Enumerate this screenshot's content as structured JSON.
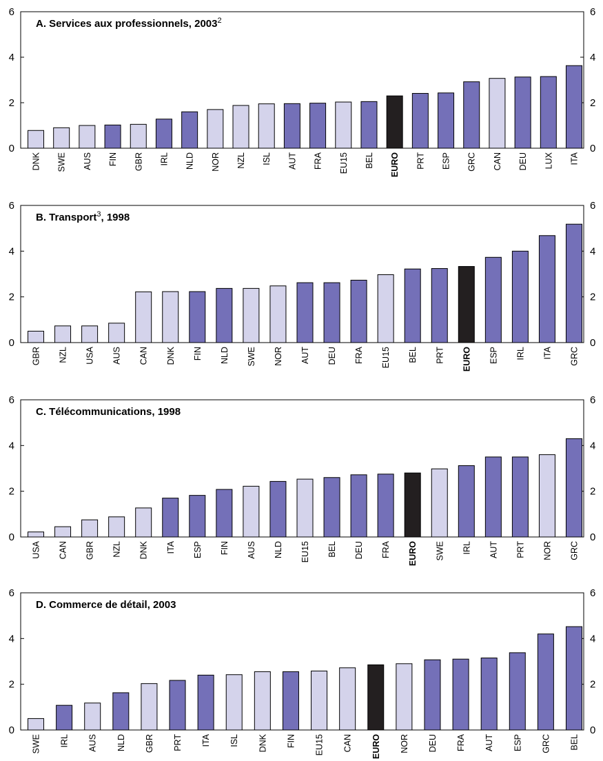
{
  "colors": {
    "dark_blue": "#7470b8",
    "light_lavender": "#d4d3eb",
    "euro_black": "#231f20"
  },
  "chart_data": [
    {
      "type": "bar",
      "title": "A. Services aux professionnels,  2003",
      "title_superscript": "2",
      "ylim": [
        0,
        6
      ],
      "yticks": [
        0,
        2,
        4,
        6
      ],
      "categories": [
        "DNK",
        "SWE",
        "AUS",
        "FIN",
        "GBR",
        "IRL",
        "NLD",
        "NOR",
        "NZL",
        "ISL",
        "AUT",
        "FRA",
        "EU15",
        "BEL",
        "EURO",
        "PRT",
        "ESP",
        "GRC",
        "CAN",
        "DEU",
        "LUX",
        "ITA"
      ],
      "values": [
        0.78,
        0.9,
        1.0,
        1.02,
        1.05,
        1.28,
        1.6,
        1.7,
        1.88,
        1.95,
        1.96,
        1.98,
        2.03,
        2.05,
        2.3,
        2.41,
        2.43,
        2.92,
        3.07,
        3.13,
        3.15,
        3.63
      ],
      "colors": [
        "light_lavender",
        "light_lavender",
        "light_lavender",
        "dark_blue",
        "light_lavender",
        "dark_blue",
        "dark_blue",
        "light_lavender",
        "light_lavender",
        "light_lavender",
        "dark_blue",
        "dark_blue",
        "light_lavender",
        "dark_blue",
        "euro_black",
        "dark_blue",
        "dark_blue",
        "dark_blue",
        "light_lavender",
        "dark_blue",
        "dark_blue",
        "dark_blue"
      ]
    },
    {
      "type": "bar",
      "title": "B. Transport",
      "title_superscript": "3",
      "title_suffix": ", 1998",
      "ylim": [
        0,
        6
      ],
      "yticks": [
        0,
        2,
        4,
        6
      ],
      "categories": [
        "GBR",
        "NZL",
        "USA",
        "AUS",
        "CAN",
        "DNK",
        "FIN",
        "NLD",
        "SWE",
        "NOR",
        "AUT",
        "DEU",
        "FRA",
        "EU15",
        "BEL",
        "PRT",
        "EURO",
        "ESP",
        "IRL",
        "ITA",
        "GRC"
      ],
      "values": [
        0.5,
        0.73,
        0.73,
        0.85,
        2.22,
        2.23,
        2.23,
        2.37,
        2.37,
        2.48,
        2.62,
        2.62,
        2.73,
        2.97,
        3.22,
        3.24,
        3.33,
        3.73,
        4.0,
        4.68,
        5.18
      ],
      "colors": [
        "light_lavender",
        "light_lavender",
        "light_lavender",
        "light_lavender",
        "light_lavender",
        "light_lavender",
        "dark_blue",
        "dark_blue",
        "light_lavender",
        "light_lavender",
        "dark_blue",
        "dark_blue",
        "dark_blue",
        "light_lavender",
        "dark_blue",
        "dark_blue",
        "euro_black",
        "dark_blue",
        "dark_blue",
        "dark_blue",
        "dark_blue"
      ]
    },
    {
      "type": "bar",
      "title": "C. Télécommunications, 1998",
      "ylim": [
        0,
        6
      ],
      "yticks": [
        0,
        2,
        4,
        6
      ],
      "categories": [
        "USA",
        "CAN",
        "GBR",
        "NZL",
        "DNK",
        "ITA",
        "ESP",
        "FIN",
        "AUS",
        "NLD",
        "EU15",
        "BEL",
        "DEU",
        "FRA",
        "EURO",
        "SWE",
        "IRL",
        "AUT",
        "PRT",
        "NOR",
        "GRC"
      ],
      "values": [
        0.22,
        0.45,
        0.75,
        0.88,
        1.27,
        1.7,
        1.82,
        2.08,
        2.22,
        2.43,
        2.53,
        2.6,
        2.72,
        2.75,
        2.8,
        2.98,
        3.12,
        3.5,
        3.5,
        3.6,
        4.3
      ],
      "colors": [
        "light_lavender",
        "light_lavender",
        "light_lavender",
        "light_lavender",
        "light_lavender",
        "dark_blue",
        "dark_blue",
        "dark_blue",
        "light_lavender",
        "dark_blue",
        "light_lavender",
        "dark_blue",
        "dark_blue",
        "dark_blue",
        "euro_black",
        "light_lavender",
        "dark_blue",
        "dark_blue",
        "dark_blue",
        "light_lavender",
        "dark_blue"
      ]
    },
    {
      "type": "bar",
      "title": "D. Commerce de détail, 2003",
      "ylim": [
        0,
        6
      ],
      "yticks": [
        0,
        2,
        4,
        6
      ],
      "categories": [
        "SWE",
        "IRL",
        "AUS",
        "NLD",
        "GBR",
        "PRT",
        "ITA",
        "ISL",
        "DNK",
        "FIN",
        "EU15",
        "CAN",
        "EURO",
        "NOR",
        "DEU",
        "FRA",
        "AUT",
        "ESP",
        "GRC",
        "BEL"
      ],
      "values": [
        0.5,
        1.08,
        1.18,
        1.63,
        2.03,
        2.17,
        2.4,
        2.42,
        2.55,
        2.55,
        2.58,
        2.72,
        2.85,
        2.9,
        3.07,
        3.1,
        3.15,
        3.38,
        4.2,
        4.52
      ],
      "colors": [
        "light_lavender",
        "dark_blue",
        "light_lavender",
        "dark_blue",
        "light_lavender",
        "dark_blue",
        "dark_blue",
        "light_lavender",
        "light_lavender",
        "dark_blue",
        "light_lavender",
        "light_lavender",
        "euro_black",
        "light_lavender",
        "dark_blue",
        "dark_blue",
        "dark_blue",
        "dark_blue",
        "dark_blue",
        "dark_blue"
      ]
    }
  ]
}
